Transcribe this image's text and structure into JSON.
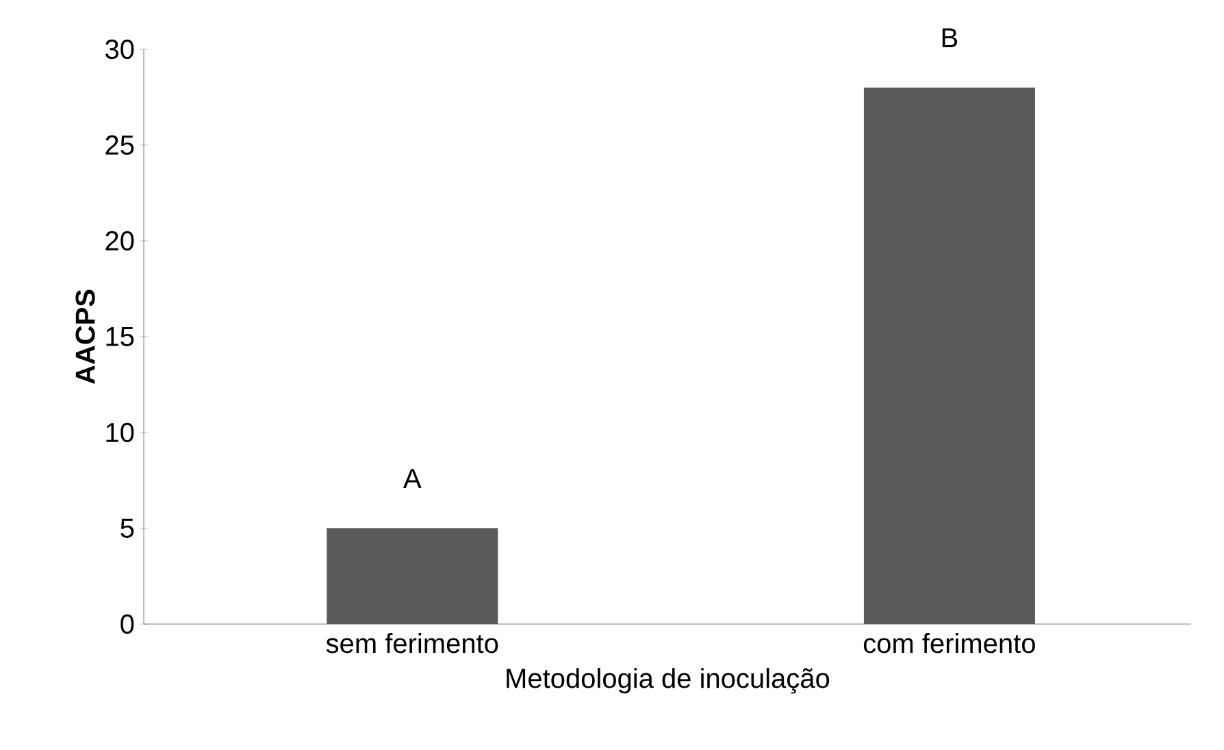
{
  "chart_data": {
    "type": "bar",
    "xlabel": "Metodologia de inoculação",
    "ylabel": "AACPS",
    "categories": [
      "sem ferimento",
      "com ferimento"
    ],
    "values": [
      5,
      28
    ],
    "color": "#595959",
    "ylim": [
      0,
      30
    ],
    "yticks": [
      0,
      5,
      10,
      15,
      20,
      25,
      30
    ],
    "grid": false,
    "annotations": [
      "A",
      "B"
    ]
  }
}
